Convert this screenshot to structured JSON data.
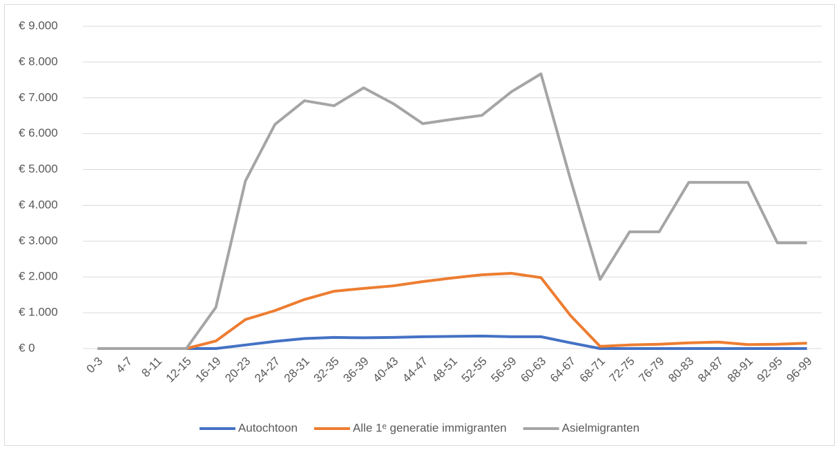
{
  "chart_data": {
    "type": "line",
    "categories": [
      "0-3",
      "4-7",
      "8-11",
      "12-15",
      "16-19",
      "20-23",
      "24-27",
      "28-31",
      "32-35",
      "36-39",
      "40-43",
      "44-47",
      "48-51",
      "52-55",
      "56-59",
      "60-63",
      "64-67",
      "68-71",
      "72-75",
      "76-79",
      "80-83",
      "84-87",
      "88-91",
      "92-95",
      "96-99"
    ],
    "series": [
      {
        "name": "Autochtoon",
        "color": "#4472c4",
        "values": [
          0,
          0,
          0,
          0,
          0,
          100,
          200,
          280,
          310,
          300,
          310,
          330,
          340,
          350,
          330,
          330,
          160,
          0,
          0,
          0,
          0,
          0,
          0,
          0,
          0
        ]
      },
      {
        "name": "Alle 1ᵉ generatie immigranten",
        "color": "#ed7d31",
        "values": [
          0,
          0,
          0,
          0,
          210,
          810,
          1060,
          1370,
          1600,
          1680,
          1750,
          1870,
          1970,
          2060,
          2100,
          1980,
          920,
          60,
          100,
          120,
          160,
          180,
          110,
          120,
          150
        ]
      },
      {
        "name": "Asielmigranten",
        "color": "#a5a5a5",
        "values": [
          0,
          0,
          0,
          0,
          1150,
          4680,
          6260,
          6920,
          6780,
          7280,
          6840,
          6280,
          6400,
          6510,
          7170,
          7670,
          4720,
          1930,
          3260,
          3260,
          4640,
          4640,
          4640,
          2950,
          2950
        ]
      }
    ],
    "ylim": [
      0,
      9000
    ],
    "yticks": [
      {
        "value": 0,
        "label": "€ 0"
      },
      {
        "value": 1000,
        "label": "€ 1.000"
      },
      {
        "value": 2000,
        "label": "€ 2.000"
      },
      {
        "value": 3000,
        "label": "€ 3.000"
      },
      {
        "value": 4000,
        "label": "€ 4.000"
      },
      {
        "value": 5000,
        "label": "€ 5.000"
      },
      {
        "value": 6000,
        "label": "€ 6.000"
      },
      {
        "value": 7000,
        "label": "€ 7.000"
      },
      {
        "value": 8000,
        "label": "€ 8.000"
      },
      {
        "value": 9000,
        "label": "€ 9.000"
      }
    ],
    "grid": true,
    "legend": "bottom"
  }
}
